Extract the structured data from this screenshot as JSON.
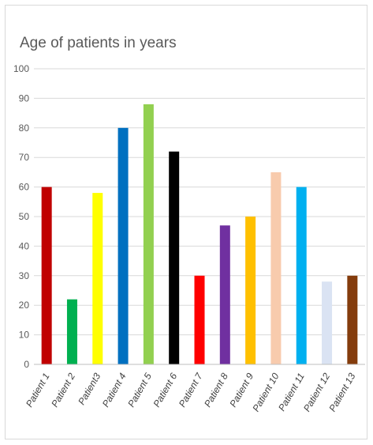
{
  "chart_data": {
    "type": "bar",
    "title": "Age of patients in years",
    "xlabel": "",
    "ylabel": "",
    "ylim": [
      0,
      100
    ],
    "yticks": [
      0,
      10,
      20,
      30,
      40,
      50,
      60,
      70,
      80,
      90,
      100
    ],
    "grid": true,
    "legend": "none",
    "categories": [
      "Patient 1",
      "Patient 2",
      "Patient3",
      "Patient 4",
      "Patient 5",
      "Patient 6",
      "Patient 7",
      "Patient 8",
      "Patient 9",
      "Patient 10",
      "Patient 11",
      "Patient 12",
      "Patient 13"
    ],
    "values": [
      60,
      22,
      58,
      80,
      88,
      72,
      30,
      47,
      50,
      65,
      60,
      28,
      30
    ],
    "colors": [
      "#c00000",
      "#00b050",
      "#ffff00",
      "#0070c0",
      "#92d050",
      "#000000",
      "#ff0000",
      "#7030a0",
      "#ffc000",
      "#f8cbad",
      "#00b0f0",
      "#dae3f3",
      "#843c0c"
    ]
  }
}
